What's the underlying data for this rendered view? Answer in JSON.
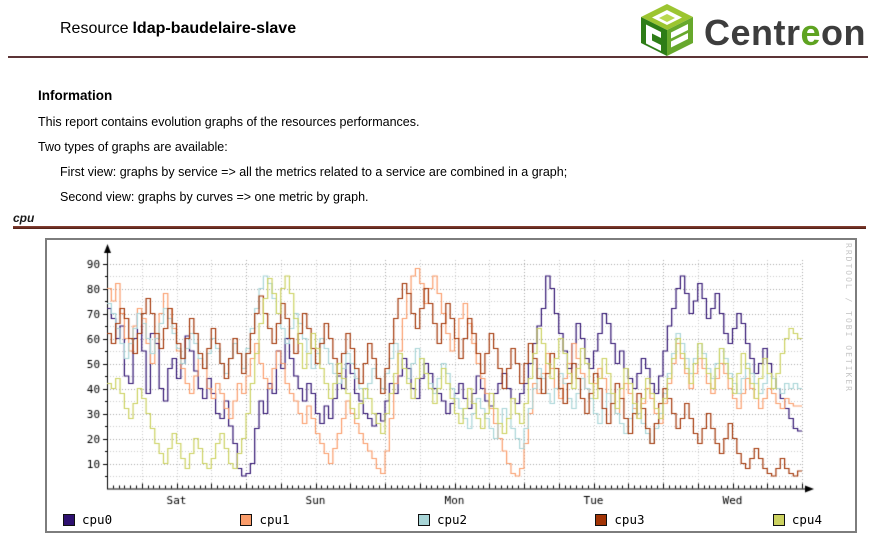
{
  "header": {
    "title_prefix": "Resource",
    "resource_name": "ldap-baudelaire-slave",
    "logo": {
      "pre": "Centr",
      "green": "e",
      "post": "on"
    }
  },
  "information": {
    "heading": "Information",
    "line1": "This report contains evolution graphs of the resources performances.",
    "line2": "Two types of graphs are available:",
    "line3": "First view: graphs by service => all the metrics related to a service are combined in a graph;",
    "line4": "Second view: graphs by curves => one metric by graph."
  },
  "section": {
    "label": "cpu"
  },
  "watermark": "RRDTOOL / TOBI OETIKER",
  "chart_data": {
    "type": "line",
    "style": "step",
    "title": "",
    "xlabel": "",
    "ylabel": "",
    "ylim": [
      0,
      93
    ],
    "y_ticks": [
      10,
      20,
      30,
      40,
      50,
      60,
      70,
      80,
      90
    ],
    "x_ticklabels": [
      "Sat",
      "Sun",
      "Mon",
      "Tue",
      "Wed"
    ],
    "grid": true,
    "legend_position": "bottom",
    "colors": {
      "axis": "#000000",
      "grid_minor": "#c9c9c9",
      "grid_major": "#a8a8a8",
      "rule_maroon": "#5c3436",
      "logo_green": "#5ea321"
    },
    "series": [
      {
        "name": "cpu0",
        "color": "#2e1070",
        "values": [
          72,
          68,
          60,
          65,
          45,
          42,
          60,
          70,
          55,
          38,
          62,
          58,
          40,
          35,
          48,
          52,
          44,
          50,
          61,
          55,
          47,
          40,
          36,
          44,
          38,
          30,
          28,
          35,
          25,
          18,
          8,
          5,
          6,
          10,
          24,
          35,
          30,
          42,
          38,
          55,
          48,
          60,
          52,
          45,
          40,
          35,
          42,
          38,
          30,
          26,
          33,
          28,
          36,
          45,
          40,
          50,
          46,
          38,
          35,
          30,
          28,
          25,
          30,
          27,
          35,
          42,
          38,
          45,
          52,
          48,
          40,
          36,
          44,
          50,
          46,
          40,
          38,
          35,
          30,
          34,
          38,
          42,
          36,
          32,
          38,
          45,
          40,
          35,
          33,
          38,
          42,
          46,
          40,
          36,
          34,
          38,
          42,
          50,
          58,
          65,
          72,
          85,
          80,
          70,
          62,
          55,
          48,
          58,
          66,
          60,
          52,
          48,
          55,
          62,
          70,
          66,
          58,
          50,
          55,
          48,
          44,
          40,
          46,
          52,
          48,
          42,
          38,
          45,
          55,
          65,
          72,
          80,
          85,
          78,
          70,
          75,
          82,
          76,
          68,
          72,
          78,
          70,
          62,
          58,
          64,
          70,
          66,
          58,
          52,
          46,
          50,
          56,
          50,
          44,
          40,
          36,
          32,
          28,
          24,
          23
        ]
      },
      {
        "name": "cpu1",
        "color": "#fa9c6a",
        "values": [
          80,
          75,
          82,
          70,
          60,
          55,
          65,
          72,
          68,
          58,
          50,
          62,
          70,
          78,
          72,
          64,
          55,
          48,
          42,
          38,
          45,
          52,
          48,
          40,
          36,
          42,
          38,
          32,
          28,
          35,
          42,
          38,
          45,
          52,
          58,
          50,
          44,
          40,
          48,
          55,
          50,
          42,
          38,
          35,
          30,
          26,
          33,
          28,
          22,
          18,
          14,
          10,
          16,
          22,
          28,
          35,
          30,
          26,
          22,
          18,
          15,
          12,
          8,
          6,
          15,
          28,
          42,
          55,
          68,
          78,
          85,
          88,
          82,
          74,
          80,
          85,
          78,
          70,
          62,
          55,
          60,
          68,
          74,
          66,
          58,
          50,
          44,
          38,
          32,
          26,
          20,
          15,
          10,
          6,
          5,
          8,
          18,
          30,
          42,
          38,
          46,
          54,
          48,
          40,
          36,
          44,
          50,
          58,
          52,
          46,
          40,
          36,
          42,
          48,
          44,
          38,
          34,
          30,
          36,
          42,
          38,
          32,
          28,
          34,
          40,
          36,
          30,
          26,
          34,
          42,
          50,
          58,
          52,
          46,
          40,
          46,
          52,
          48,
          42,
          38,
          44,
          50,
          46,
          40,
          36,
          32,
          38,
          44,
          40,
          36,
          32,
          36,
          40,
          38,
          34,
          32,
          36,
          34,
          33,
          33
        ]
      },
      {
        "name": "cpu2",
        "color": "#a8d5d7",
        "values": [
          74,
          70,
          64,
          58,
          52,
          58,
          64,
          70,
          66,
          60,
          54,
          60,
          66,
          72,
          68,
          62,
          56,
          50,
          56,
          62,
          58,
          52,
          48,
          54,
          60,
          56,
          50,
          46,
          52,
          58,
          54,
          48,
          56,
          64,
          72,
          80,
          85,
          82,
          76,
          70,
          64,
          58,
          64,
          70,
          66,
          60,
          54,
          48,
          54,
          60,
          56,
          50,
          46,
          42,
          48,
          54,
          50,
          44,
          40,
          36,
          42,
          48,
          44,
          40,
          46,
          52,
          58,
          54,
          48,
          44,
          50,
          56,
          52,
          46,
          42,
          38,
          44,
          50,
          46,
          40,
          36,
          32,
          28,
          24,
          30,
          36,
          32,
          28,
          24,
          20,
          26,
          32,
          28,
          24,
          20,
          16,
          24,
          32,
          40,
          48,
          44,
          38,
          34,
          40,
          46,
          42,
          36,
          32,
          38,
          44,
          40,
          36,
          30,
          26,
          32,
          38,
          34,
          30,
          26,
          22,
          28,
          34,
          30,
          26,
          22,
          18,
          24,
          30,
          38,
          46,
          54,
          62,
          58,
          52,
          46,
          52,
          58,
          54,
          48,
          44,
          50,
          56,
          52,
          46,
          42,
          38,
          44,
          50,
          46,
          42,
          38,
          42,
          46,
          44,
          40,
          38,
          42,
          40,
          42,
          40
        ]
      },
      {
        "name": "cpu3",
        "color": "#a23405",
        "values": [
          62,
          58,
          66,
          72,
          68,
          60,
          54,
          62,
          70,
          76,
          70,
          62,
          56,
          64,
          72,
          66,
          58,
          52,
          60,
          68,
          62,
          54,
          48,
          56,
          64,
          58,
          50,
          44,
          52,
          60,
          54,
          46,
          54,
          62,
          70,
          77,
          70,
          64,
          58,
          66,
          74,
          68,
          60,
          54,
          62,
          70,
          64,
          56,
          50,
          58,
          66,
          60,
          52,
          46,
          54,
          62,
          56,
          48,
          42,
          50,
          58,
          52,
          44,
          38,
          48,
          58,
          68,
          76,
          82,
          78,
          70,
          64,
          72,
          80,
          74,
          66,
          58,
          66,
          74,
          68,
          60,
          52,
          60,
          68,
          62,
          54,
          46,
          54,
          62,
          56,
          48,
          40,
          48,
          56,
          50,
          42,
          50,
          58,
          52,
          44,
          38,
          46,
          54,
          48,
          40,
          34,
          42,
          50,
          44,
          36,
          30,
          38,
          46,
          40,
          32,
          26,
          34,
          42,
          36,
          28,
          22,
          30,
          38,
          32,
          24,
          18,
          26,
          34,
          40,
          36,
          30,
          24,
          28,
          34,
          28,
          22,
          18,
          24,
          30,
          24,
          18,
          14,
          20,
          26,
          20,
          14,
          10,
          8,
          12,
          16,
          12,
          8,
          6,
          5,
          8,
          12,
          8,
          6,
          5,
          7
        ]
      },
      {
        "name": "cpu4",
        "color": "#cbd15f",
        "values": [
          42,
          40,
          44,
          38,
          32,
          28,
          34,
          40,
          36,
          30,
          24,
          18,
          14,
          10,
          16,
          22,
          18,
          12,
          8,
          14,
          20,
          16,
          10,
          8,
          12,
          18,
          22,
          16,
          10,
          8,
          14,
          20,
          30,
          42,
          54,
          66,
          76,
          84,
          78,
          70,
          80,
          85,
          78,
          68,
          58,
          48,
          54,
          62,
          56,
          48,
          42,
          36,
          42,
          50,
          44,
          38,
          32,
          28,
          34,
          40,
          36,
          30,
          26,
          22,
          30,
          38,
          46,
          54,
          48,
          42,
          36,
          44,
          52,
          46,
          40,
          34,
          40,
          48,
          42,
          36,
          30,
          26,
          32,
          40,
          34,
          28,
          24,
          30,
          38,
          32,
          26,
          22,
          28,
          36,
          30,
          26,
          34,
          44,
          54,
          64,
          58,
          50,
          44,
          52,
          60,
          54,
          46,
          40,
          48,
          56,
          50,
          42,
          36,
          44,
          52,
          46,
          38,
          32,
          40,
          48,
          42,
          34,
          28,
          36,
          44,
          38,
          32,
          28,
          36,
          44,
          52,
          60,
          54,
          48,
          42,
          50,
          58,
          52,
          46,
          40,
          48,
          56,
          50,
          44,
          38,
          46,
          54,
          48,
          42,
          36,
          44,
          52,
          46,
          40,
          46,
          54,
          60,
          64,
          62,
          60
        ]
      }
    ]
  }
}
